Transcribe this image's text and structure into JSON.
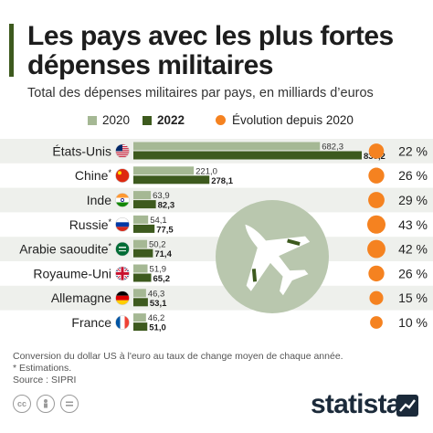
{
  "title": "Les pays avec les plus fortes dépenses militaires",
  "subtitle": "Total des dépenses militaires par pays, en milliards d’euros",
  "legend": {
    "y2020": "2020",
    "y2022": "2022",
    "evolution": "Évolution depuis 2020"
  },
  "colors": {
    "bar2020": "#a5b894",
    "bar2022": "#3d5a1e",
    "bubble": "#f58220",
    "row_alt": "#eef0ec",
    "plane_circle": "#b9c7ae",
    "plane": "#ffffff"
  },
  "chart_data": {
    "type": "bar",
    "orientation": "horizontal",
    "categories": [
      "États-Unis",
      "Chine*",
      "Inde",
      "Russie*",
      "Arabie saoudite*",
      "Royaume-Uni",
      "Allemagne",
      "France"
    ],
    "flags": [
      "us-flag-icon",
      "china-flag-icon",
      "india-flag-icon",
      "russia-flag-icon",
      "saudi-flag-icon",
      "uk-flag-icon",
      "germany-flag-icon",
      "france-flag-icon"
    ],
    "series": [
      {
        "name": "2020",
        "values": [
          682.3,
          221.0,
          63.9,
          54.1,
          50.2,
          51.9,
          46.3,
          46.2
        ],
        "labels": [
          "682,3",
          "221,0",
          "63,9",
          "54,1",
          "50,2",
          "51,9",
          "46,3",
          "46,2"
        ]
      },
      {
        "name": "2022",
        "values": [
          835.2,
          278.1,
          82.3,
          77.5,
          71.4,
          65.2,
          53.1,
          51.0
        ],
        "labels": [
          "835,2",
          "278,1",
          "82,3",
          "77,5",
          "71,4",
          "65,2",
          "53,1",
          "51,0"
        ]
      }
    ],
    "evolution": {
      "name": "Évolution depuis 2020",
      "values": [
        22,
        26,
        29,
        43,
        42,
        26,
        15,
        10
      ],
      "labels": [
        "22 %",
        "26 %",
        "29 %",
        "43 %",
        "42 %",
        "26 %",
        "15 %",
        "10 %"
      ]
    },
    "xlim": [
      0,
      835.2
    ],
    "grid": false,
    "legend_position": "top"
  },
  "notes": {
    "line1": "Conversion du dollar US à l'euro au taux de change moyen de chaque année.",
    "line2": "* Estimations.",
    "line3": "Source : SIPRI"
  },
  "footer": {
    "brand": "statista",
    "icons": [
      "cc-icon",
      "person-icon",
      "equal-icon"
    ]
  }
}
